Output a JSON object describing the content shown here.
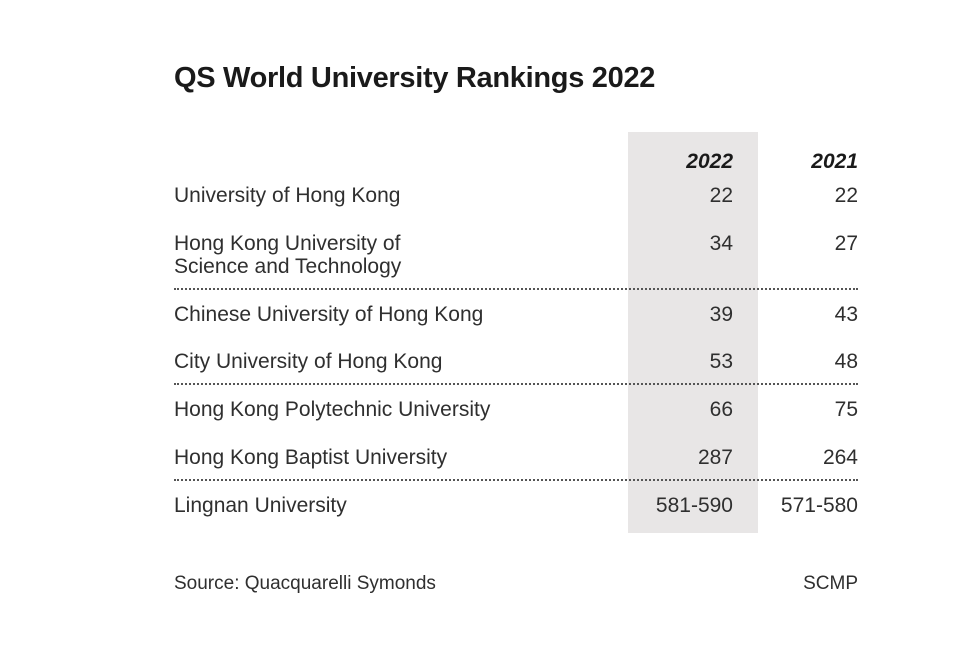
{
  "title": "QS World University Rankings 2022",
  "columns": [
    "2022",
    "2021"
  ],
  "rows": [
    {
      "name": "University of Hong Kong",
      "y2022": "22",
      "y2021": "22"
    },
    {
      "name": "Hong Kong University of\nScience and Technology",
      "y2022": "34",
      "y2021": "27"
    },
    {
      "name": "Chinese University of Hong Kong",
      "y2022": "39",
      "y2021": "43"
    },
    {
      "name": "City University of Hong Kong",
      "y2022": "53",
      "y2021": "48"
    },
    {
      "name": "Hong Kong Polytechnic University",
      "y2022": "66",
      "y2021": "75"
    },
    {
      "name": "Hong Kong Baptist University",
      "y2022": "287",
      "y2021": "264"
    },
    {
      "name": "Lingnan University",
      "y2022": "581-590",
      "y2021": "571-580"
    }
  ],
  "source": "Source: Quacquarelli Symonds",
  "credit": "SCMP",
  "colors": {
    "highlight_column": "#e8e6e6",
    "text": "#2f2f2f"
  }
}
